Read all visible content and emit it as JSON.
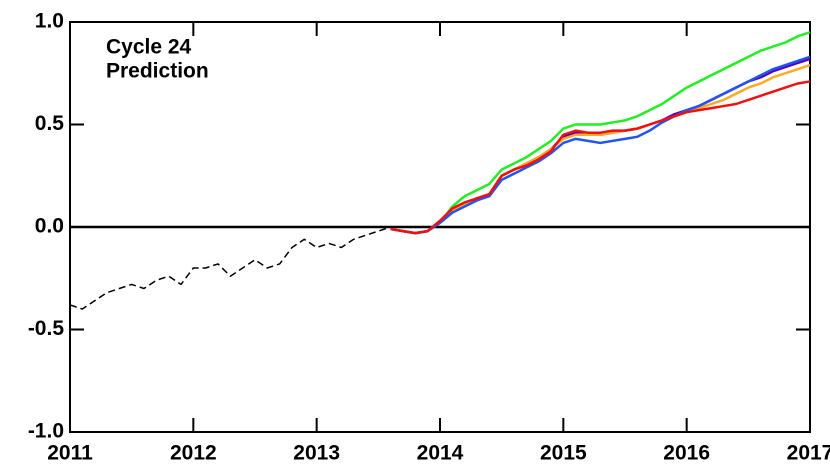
{
  "chart_data": {
    "type": "line",
    "annotation": [
      "Cycle 24",
      "Prediction"
    ],
    "x": [
      2011.0,
      2011.1,
      2011.2,
      2011.3,
      2011.4,
      2011.5,
      2011.6,
      2011.7,
      2011.8,
      2011.9,
      2012.0,
      2012.1,
      2012.2,
      2012.3,
      2012.4,
      2012.5,
      2012.6,
      2012.7,
      2012.8,
      2012.9,
      2013.0,
      2013.1,
      2013.2,
      2013.3,
      2013.4,
      2013.5,
      2013.6,
      2013.7,
      2013.8,
      2013.9,
      2014.0,
      2014.1,
      2014.2,
      2014.3,
      2014.4,
      2014.5,
      2014.6,
      2014.7,
      2014.8,
      2014.9,
      2015.0,
      2015.1,
      2015.2,
      2015.3,
      2015.4,
      2015.5,
      2015.6,
      2015.7,
      2015.8,
      2015.9,
      2016.0,
      2016.1,
      2016.2,
      2016.3,
      2016.4,
      2016.5,
      2016.6,
      2016.7,
      2016.8,
      2016.9,
      2017.0
    ],
    "series": [
      {
        "color": "#000000",
        "dashed": true,
        "values": [
          -0.38,
          -0.4,
          -0.36,
          -0.32,
          -0.3,
          -0.28,
          -0.3,
          -0.26,
          -0.24,
          -0.28,
          -0.2,
          -0.2,
          -0.18,
          -0.24,
          -0.2,
          -0.16,
          -0.2,
          -0.18,
          -0.1,
          -0.06,
          -0.1,
          -0.08,
          -0.1,
          -0.06,
          -0.04,
          -0.02,
          0.0,
          null,
          null,
          null,
          null,
          null,
          null,
          null,
          null,
          null,
          null,
          null,
          null,
          null,
          null,
          null,
          null,
          null,
          null,
          null,
          null,
          null,
          null,
          null,
          null,
          null,
          null,
          null,
          null,
          null,
          null,
          null,
          null,
          null,
          null
        ]
      },
      {
        "color": "#22ee22",
        "values": [
          null,
          null,
          null,
          null,
          null,
          null,
          null,
          null,
          null,
          null,
          null,
          null,
          null,
          null,
          null,
          null,
          null,
          null,
          null,
          null,
          null,
          null,
          null,
          null,
          null,
          null,
          null,
          null,
          null,
          null,
          0.02,
          0.1,
          0.15,
          0.18,
          0.21,
          0.28,
          0.31,
          0.34,
          0.38,
          0.42,
          0.48,
          0.5,
          0.5,
          0.5,
          0.51,
          0.52,
          0.54,
          0.57,
          0.6,
          0.64,
          0.68,
          0.71,
          0.74,
          0.77,
          0.8,
          0.83,
          0.86,
          0.88,
          0.9,
          0.93,
          0.95
        ]
      },
      {
        "color": "#5500bb",
        "values": [
          null,
          null,
          null,
          null,
          null,
          null,
          null,
          null,
          null,
          null,
          null,
          null,
          null,
          null,
          null,
          null,
          null,
          null,
          null,
          null,
          null,
          null,
          null,
          null,
          null,
          null,
          -0.01,
          -0.02,
          -0.03,
          -0.02,
          0.03,
          0.08,
          0.11,
          0.14,
          0.16,
          0.25,
          0.28,
          0.31,
          0.34,
          0.38,
          0.44,
          0.46,
          0.45,
          0.45,
          0.46,
          0.47,
          0.48,
          0.5,
          0.52,
          0.55,
          0.57,
          0.59,
          0.62,
          0.65,
          0.68,
          0.71,
          0.73,
          0.76,
          0.78,
          0.8,
          0.82
        ]
      },
      {
        "color": "#ffaa22",
        "values": [
          null,
          null,
          null,
          null,
          null,
          null,
          null,
          null,
          null,
          null,
          null,
          null,
          null,
          null,
          null,
          null,
          null,
          null,
          null,
          null,
          null,
          null,
          null,
          null,
          null,
          null,
          -0.01,
          -0.02,
          -0.03,
          -0.02,
          0.03,
          0.08,
          0.11,
          0.14,
          0.16,
          0.25,
          0.28,
          0.31,
          0.34,
          0.38,
          0.43,
          0.45,
          0.45,
          0.45,
          0.46,
          0.47,
          0.48,
          0.5,
          0.52,
          0.54,
          0.56,
          0.58,
          0.6,
          0.62,
          0.65,
          0.68,
          0.7,
          0.73,
          0.75,
          0.77,
          0.79
        ]
      },
      {
        "color": "#2255ee",
        "values": [
          null,
          null,
          null,
          null,
          null,
          null,
          null,
          null,
          null,
          null,
          null,
          null,
          null,
          null,
          null,
          null,
          null,
          null,
          null,
          null,
          null,
          null,
          null,
          null,
          null,
          null,
          -0.01,
          -0.02,
          -0.03,
          -0.02,
          0.02,
          0.07,
          0.1,
          0.13,
          0.15,
          0.23,
          0.26,
          0.29,
          0.32,
          0.36,
          0.41,
          0.43,
          0.42,
          0.41,
          0.42,
          0.43,
          0.44,
          0.47,
          0.51,
          0.54,
          0.57,
          0.59,
          0.62,
          0.65,
          0.68,
          0.71,
          0.74,
          0.77,
          0.79,
          0.81,
          0.83
        ]
      },
      {
        "color": "#ee1111",
        "values": [
          null,
          null,
          null,
          null,
          null,
          null,
          null,
          null,
          null,
          null,
          null,
          null,
          null,
          null,
          null,
          null,
          null,
          null,
          null,
          null,
          null,
          null,
          null,
          null,
          null,
          null,
          -0.01,
          -0.02,
          -0.03,
          -0.02,
          0.03,
          0.09,
          0.12,
          0.14,
          0.16,
          0.25,
          0.28,
          0.3,
          0.33,
          0.37,
          0.45,
          0.47,
          0.46,
          0.46,
          0.47,
          0.47,
          0.48,
          0.5,
          0.52,
          0.54,
          0.56,
          0.57,
          0.58,
          0.59,
          0.6,
          0.62,
          0.64,
          0.66,
          0.68,
          0.7,
          0.71
        ]
      }
    ],
    "reference_line": 0,
    "xlim": [
      2011,
      2017
    ],
    "xticks": [
      2011,
      2012,
      2013,
      2014,
      2015,
      2016,
      2017
    ],
    "ylim": [
      -1,
      1
    ],
    "yticks": [
      {
        "value": -1,
        "label": "-1.0"
      },
      -0.5,
      {
        "value": 0,
        "label": "0.0"
      },
      0.5,
      {
        "value": 1,
        "label": "1.0"
      }
    ]
  }
}
